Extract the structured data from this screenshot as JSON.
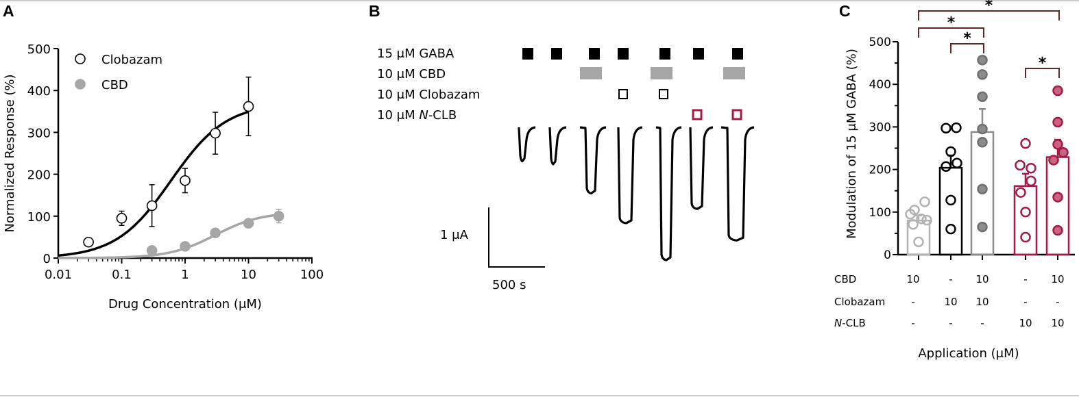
{
  "figure": {
    "panel_labels": [
      "A",
      "B",
      "C"
    ]
  },
  "chart_data": [
    {
      "panel": "A",
      "type": "scatter",
      "x_scale": "log",
      "xlim": [
        0.01,
        100
      ],
      "ylim": [
        0,
        500
      ],
      "xlabel": "Drug Concentration (μM)",
      "ylabel": "Normalized Response (%)",
      "x_tick_labels": [
        "0.01",
        "0.1",
        "1",
        "10",
        "100"
      ],
      "y_tick_labels": [
        "0",
        "100",
        "200",
        "300",
        "400",
        "500"
      ],
      "grid": false,
      "legend_position": "top-left",
      "series": [
        {
          "name": "Clobazam",
          "marker": "open-circle",
          "color": "#000000",
          "x": [
            0.03,
            0.1,
            0.3,
            1,
            3,
            10
          ],
          "y": [
            38,
            95,
            125,
            185,
            298,
            362
          ],
          "err": [
            0,
            17,
            50,
            29,
            50,
            70
          ],
          "fit": {
            "bottom": 0,
            "top": 370,
            "ec50": 0.6,
            "hill": 1
          }
        },
        {
          "name": "CBD",
          "marker": "filled-circle",
          "color": "#a6a6a6",
          "x": [
            0.3,
            1,
            3,
            10,
            30
          ],
          "y": [
            18,
            28,
            60,
            83,
            100
          ],
          "err": [
            0,
            0,
            0,
            0,
            16
          ],
          "fit": {
            "bottom": 0,
            "top": 110,
            "ec50": 3,
            "hill": 1.2
          }
        }
      ]
    },
    {
      "panel": "C",
      "type": "bar",
      "ylim": [
        0,
        500
      ],
      "ylabel": "Modulation of 15 μM GABA (%)",
      "xlabel": "Application (μM)",
      "y_tick_labels": [
        "0",
        "100",
        "200",
        "300",
        "400",
        "500"
      ],
      "values": [
        80,
        204,
        288,
        161,
        229
      ],
      "err_upper": [
        12,
        29,
        54,
        29,
        41
      ],
      "bar_colors": [
        "#b3b3b3",
        "#000000",
        "#8c8c8c",
        "#a31b47",
        "#a31b47"
      ],
      "point_fill": [
        "none",
        "none",
        "#8c8c8c",
        "none",
        "#c9637f"
      ],
      "point_stroke": [
        "#b3b3b3",
        "#000000",
        "#707070",
        "#a31b47",
        "#a31b47"
      ],
      "points": [
        [
          124,
          105,
          95,
          84,
          81,
          71,
          30
        ],
        [
          297,
          298,
          242,
          215,
          207,
          128,
          60
        ],
        [
          457,
          423,
          371,
          295,
          264,
          154,
          65
        ],
        [
          261,
          210,
          203,
          173,
          146,
          100,
          41
        ],
        [
          385,
          311,
          259,
          240,
          222,
          135,
          57
        ]
      ],
      "comparisons": [
        {
          "groups": [
            0,
            4
          ],
          "label": "*"
        },
        {
          "groups": [
            0,
            2
          ],
          "label": "*"
        },
        {
          "groups": [
            1,
            2
          ],
          "label": "*"
        },
        {
          "groups": [
            3,
            4
          ],
          "label": "*"
        }
      ],
      "bracket_color": "#5a2a27",
      "table": [
        {
          "label": "CBD",
          "label_italic": "",
          "values": [
            "10",
            "-",
            "10",
            "-",
            "10"
          ]
        },
        {
          "label": "-CLB",
          "label_italic": "N",
          "values": [
            "-",
            "-",
            "-",
            "10",
            "10"
          ]
        },
        {
          "label": "Clobazam",
          "label_italic": "",
          "values": [
            "-",
            "10",
            "10",
            "-",
            "-"
          ]
        }
      ]
    }
  ],
  "panel_b": {
    "rows": [
      {
        "prefix": "15 μM ",
        "italic": "",
        "name": "GABA",
        "color": "#000000",
        "style": "filled-square",
        "applied_in_traces": [
          0,
          1,
          2,
          3,
          4,
          5,
          6
        ]
      },
      {
        "prefix": "10 μM ",
        "italic": "",
        "name": "CBD",
        "color": "#a6a6a6",
        "style": "bar",
        "applied_in_traces": [
          2,
          4,
          6
        ]
      },
      {
        "prefix": "10 μM ",
        "italic": "",
        "name": "Clobazam",
        "color": "#000000",
        "style": "open-square",
        "applied_in_traces": [
          3,
          4
        ]
      },
      {
        "prefix": "10 μM ",
        "italic": "N",
        "name": "-CLB",
        "color": "#a31b47",
        "style": "open-square",
        "applied_in_traces": [
          5,
          6
        ]
      }
    ],
    "peak_current_uA": [
      0.57,
      0.62,
      1.11,
      1.61,
      2.23,
      1.37,
      1.9
    ],
    "scale_bar": {
      "current": "1 μA",
      "time": "500 s"
    }
  }
}
